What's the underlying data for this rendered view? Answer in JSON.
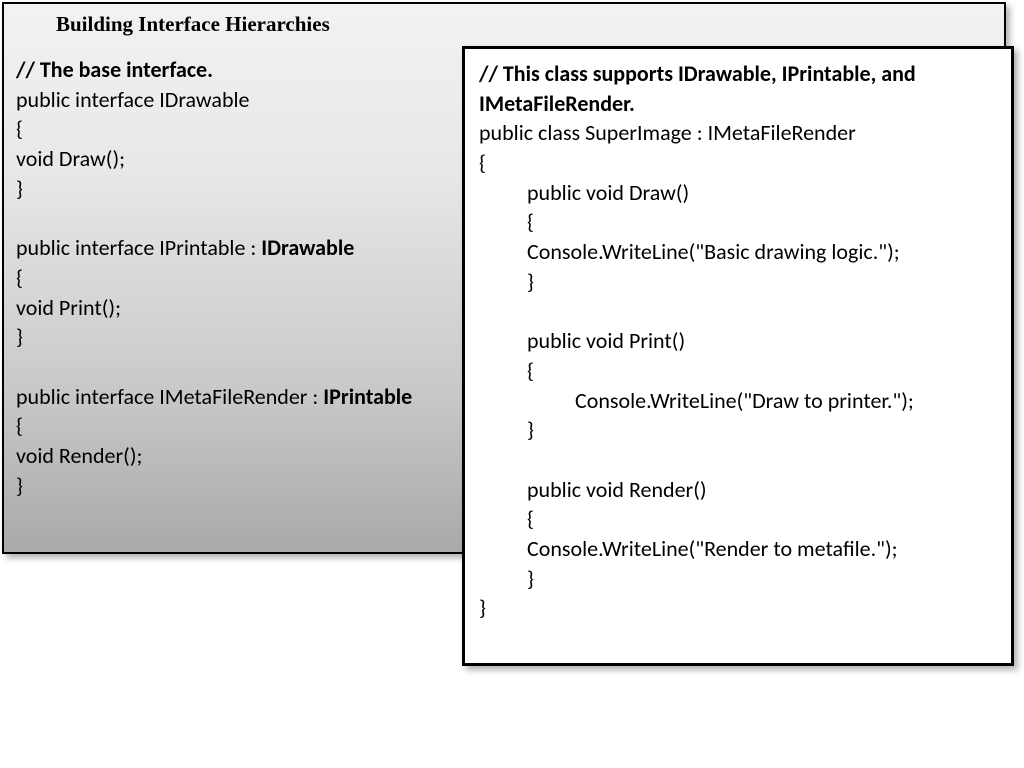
{
  "colors": {
    "background": "#ffffff",
    "panel_border": "#000000",
    "text": "#000000",
    "gradient_top": "#f2f2f2",
    "gradient_bottom": "#a9a9a9"
  },
  "typography": {
    "title_family": "Georgia, serif",
    "code_family": "Calibri, sans-serif",
    "title_size_pt": 16,
    "code_size_pt": 17,
    "title_weight": "bold"
  },
  "left": {
    "title": "Building Interface Hierarchies",
    "comment1": "// The base interface.",
    "line1": "public interface IDrawable",
    "line2": "{",
    "line3": "void Draw();",
    "line4": "}",
    "line5a": "public interface IPrintable : ",
    "line5b": "IDrawable",
    "line6": "{",
    "line7": "void Print();",
    "line8": "}",
    "line9a": "public interface IMetaFileRender : ",
    "line9b": "IPrintable",
    "line10": "{",
    "line11": "void Render();",
    "line12": "}"
  },
  "right": {
    "comment1": "// This class supports IDrawable, IPrintable, and IMetaFileRender.",
    "line1": "public class SuperImage : IMetaFileRender",
    "line2": "{",
    "line3": "public void Draw()",
    "line4": "{",
    "line5": "Console.WriteLine(\"Basic drawing logic.\");",
    "line6": "}",
    "line7": "public void Print()",
    "line8": "{",
    "line9": "Console.WriteLine(\"Draw to printer.\");",
    "line10": "}",
    "line11": "public void Render()",
    "line12": "{",
    "line13": " Console.WriteLine(\"Render to metafile.\");",
    "line14": "}",
    "line15": "}"
  }
}
